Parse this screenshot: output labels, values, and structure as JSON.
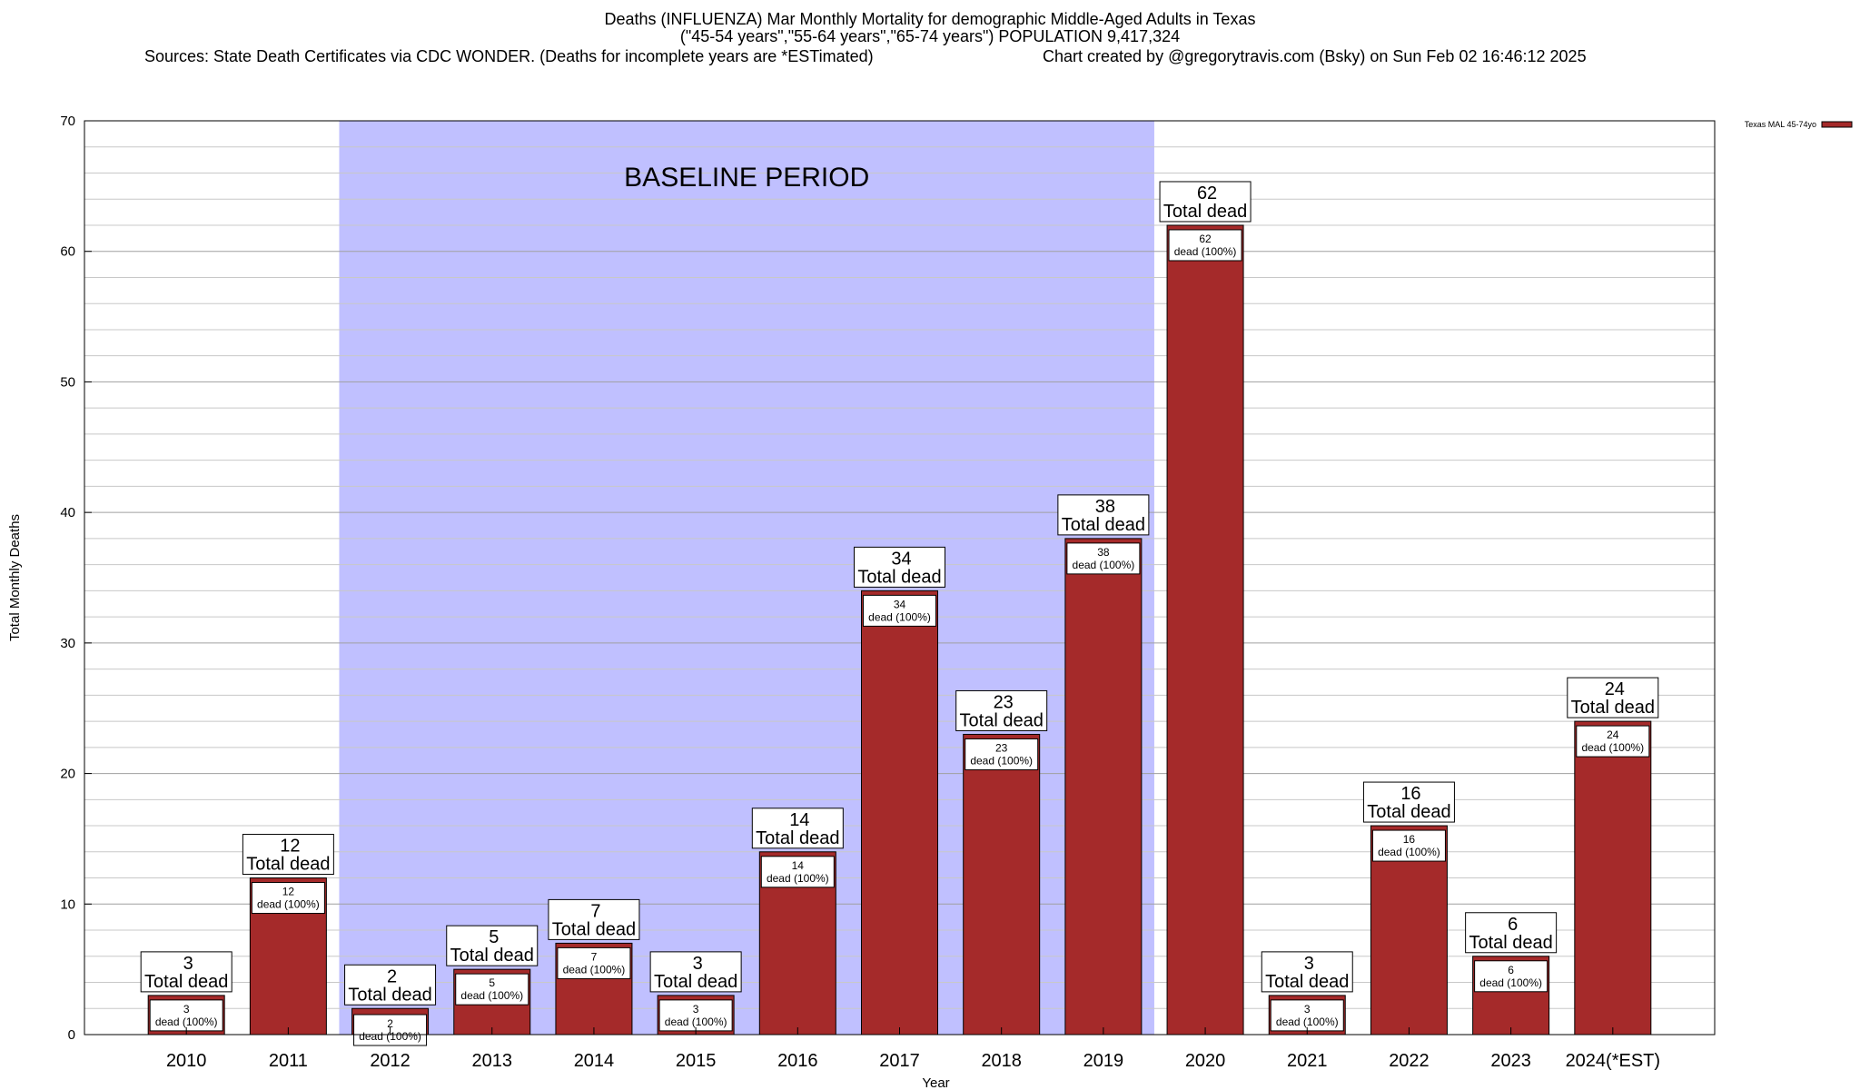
{
  "chart_data": {
    "type": "bar",
    "title": "Deaths (INFLUENZA) Mar Monthly Mortality for demographic Middle-Aged Adults in Texas",
    "subtitle": "(\"45-54 years\",\"55-64 years\",\"65-74 years\") POPULATION 9,417,324",
    "sources": "Sources: State Death Certificates via CDC WONDER. (Deaths for incomplete years are *ESTimated)",
    "credit": "Chart created by @gregorytravis.com (Bsky) on Sun Feb 02 16:46:12 2025",
    "xlabel": "Year",
    "ylabel": "Total Monthly Deaths",
    "ylim": [
      0,
      70
    ],
    "yticks": [
      0,
      10,
      20,
      30,
      40,
      50,
      60,
      70
    ],
    "categories": [
      "2010",
      "2011",
      "2012",
      "2013",
      "2014",
      "2015",
      "2016",
      "2017",
      "2018",
      "2019",
      "2020",
      "2021",
      "2022",
      "2023",
      "2024(*EST)"
    ],
    "series": [
      {
        "name": "Texas MAL 45-74yo",
        "color": "#a52a2a",
        "values": [
          3,
          12,
          2,
          5,
          7,
          3,
          14,
          34,
          23,
          38,
          62,
          3,
          16,
          6,
          24
        ]
      }
    ],
    "top_label_suffix": "Total dead",
    "inner_label_suffix": "dead (100%)",
    "baseline": {
      "label": "BASELINE PERIOD",
      "start": "2012",
      "end": "2019",
      "color": "#c0c0ff"
    },
    "grid": true,
    "legend_position": "top-right"
  }
}
